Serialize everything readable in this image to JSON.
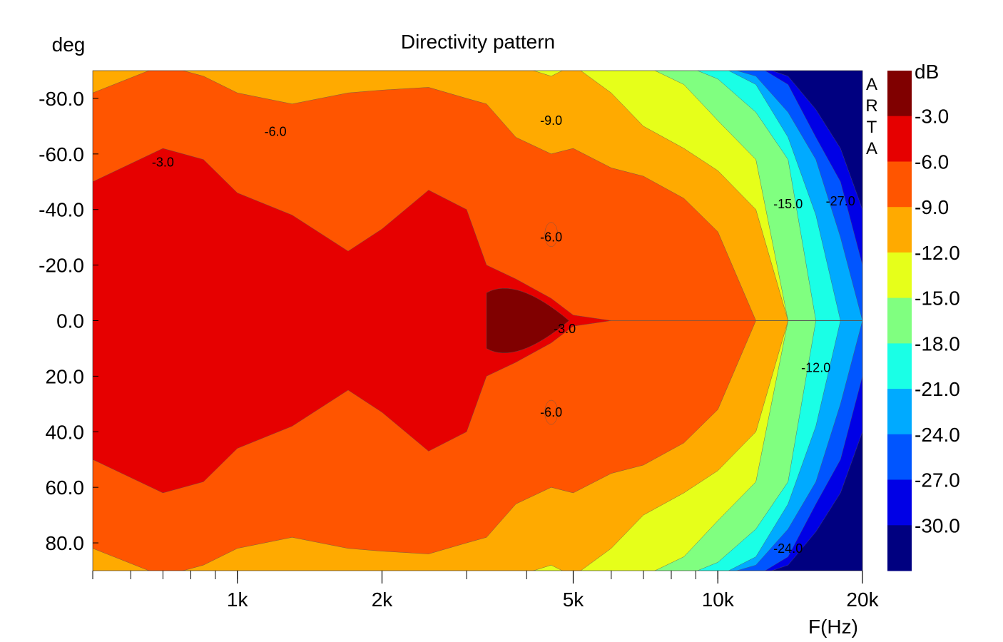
{
  "chart_data": {
    "type": "heatmap",
    "title": "Directivity pattern",
    "ylabel": "deg",
    "xlabel": "F(Hz)",
    "x_scale": "log",
    "xlim": [
      500,
      20000
    ],
    "ylim": [
      -90,
      90
    ],
    "y_ticks": [
      {
        "value": -80,
        "label": "-80.0"
      },
      {
        "value": -60,
        "label": "-60.0"
      },
      {
        "value": -40,
        "label": "-40.0"
      },
      {
        "value": -20,
        "label": "-20.0"
      },
      {
        "value": 0,
        "label": "0.0"
      },
      {
        "value": 20,
        "label": "20.0"
      },
      {
        "value": 40,
        "label": "40.0"
      },
      {
        "value": 60,
        "label": "60.0"
      },
      {
        "value": 80,
        "label": "80.0"
      }
    ],
    "x_ticks": [
      {
        "value": 1000,
        "label": "1k"
      },
      {
        "value": 2000,
        "label": "2k"
      },
      {
        "value": 5000,
        "label": "5k"
      },
      {
        "value": 10000,
        "label": "10k"
      },
      {
        "value": 20000,
        "label": "20k"
      }
    ],
    "legend": {
      "unit": "dB",
      "placement": "right",
      "levels": [
        "-3.0",
        "-6.0",
        "-9.0",
        "-12.0",
        "-15.0",
        "-18.0",
        "-21.0",
        "-24.0",
        "-27.0",
        "-30.0"
      ],
      "colors": [
        "#800000",
        "#e60000",
        "#ff5500",
        "#ffaa00",
        "#e6ff1a",
        "#80ff80",
        "#1affe6",
        "#00aaff",
        "#0055ff",
        "#0000e6",
        "#000080"
      ]
    },
    "contour_labels": [
      {
        "text": "-3.0",
        "freq": 700,
        "deg": -57
      },
      {
        "text": "-6.0",
        "freq": 1200,
        "deg": -68
      },
      {
        "text": "-9.0",
        "freq": 4500,
        "deg": -72
      },
      {
        "text": "-6.0",
        "freq": 4500,
        "deg": -30
      },
      {
        "text": "-3.0",
        "freq": 4800,
        "deg": 3
      },
      {
        "text": "-6.0",
        "freq": 4500,
        "deg": 33
      },
      {
        "text": "-15.0",
        "freq": 14000,
        "deg": -42
      },
      {
        "text": "-27.0",
        "freq": 18000,
        "deg": -43
      },
      {
        "text": "-12.0",
        "freq": 16000,
        "deg": 17
      },
      {
        "text": "-24.0",
        "freq": 14000,
        "deg": 82
      }
    ],
    "beamwidth_boundaries_deg": {
      "description": "Angle (deg, symmetric ±) at which level falls below each contour, versus frequency (Hz)",
      "freq": [
        500,
        700,
        850,
        1000,
        1300,
        1700,
        2000,
        2500,
        3000,
        3300,
        3800,
        4500,
        5000,
        6000,
        7000,
        8500,
        10000,
        12000,
        14000,
        16000,
        18000,
        20000
      ],
      "c3": [
        50,
        62,
        58,
        46,
        38,
        25,
        33,
        47,
        40,
        20,
        15,
        8,
        2,
        0,
        0,
        0,
        0,
        0,
        0,
        0,
        0,
        0
      ],
      "c6": [
        82,
        90,
        88,
        82,
        78,
        82,
        83,
        84,
        80,
        78,
        66,
        60,
        62,
        55,
        52,
        44,
        32,
        0,
        0,
        0,
        0,
        0
      ],
      "c9": [
        90,
        90,
        90,
        90,
        90,
        90,
        90,
        90,
        90,
        90,
        90,
        88,
        90,
        82,
        70,
        62,
        54,
        40,
        0,
        0,
        0,
        0
      ],
      "c12": [
        90,
        90,
        90,
        90,
        90,
        90,
        90,
        90,
        90,
        90,
        90,
        90,
        90,
        90,
        90,
        85,
        72,
        58,
        0,
        0,
        0,
        0
      ],
      "c15": [
        90,
        90,
        90,
        90,
        90,
        90,
        90,
        90,
        90,
        90,
        90,
        90,
        90,
        90,
        90,
        90,
        87,
        75,
        58,
        0,
        0,
        0
      ],
      "c18": [
        90,
        90,
        90,
        90,
        90,
        90,
        90,
        90,
        90,
        90,
        90,
        90,
        90,
        90,
        90,
        90,
        90,
        85,
        66,
        38,
        0,
        0
      ],
      "c21": [
        90,
        90,
        90,
        90,
        90,
        90,
        90,
        90,
        90,
        90,
        90,
        90,
        90,
        90,
        90,
        90,
        90,
        88,
        75,
        58,
        30,
        0
      ],
      "c24": [
        90,
        90,
        90,
        90,
        90,
        90,
        90,
        90,
        90,
        90,
        90,
        90,
        90,
        90,
        90,
        90,
        90,
        90,
        85,
        66,
        50,
        20
      ],
      "c27": [
        90,
        90,
        90,
        90,
        90,
        90,
        90,
        90,
        90,
        90,
        90,
        90,
        90,
        90,
        90,
        90,
        90,
        90,
        88,
        76,
        62,
        40
      ]
    }
  },
  "watermark": "ARTA"
}
